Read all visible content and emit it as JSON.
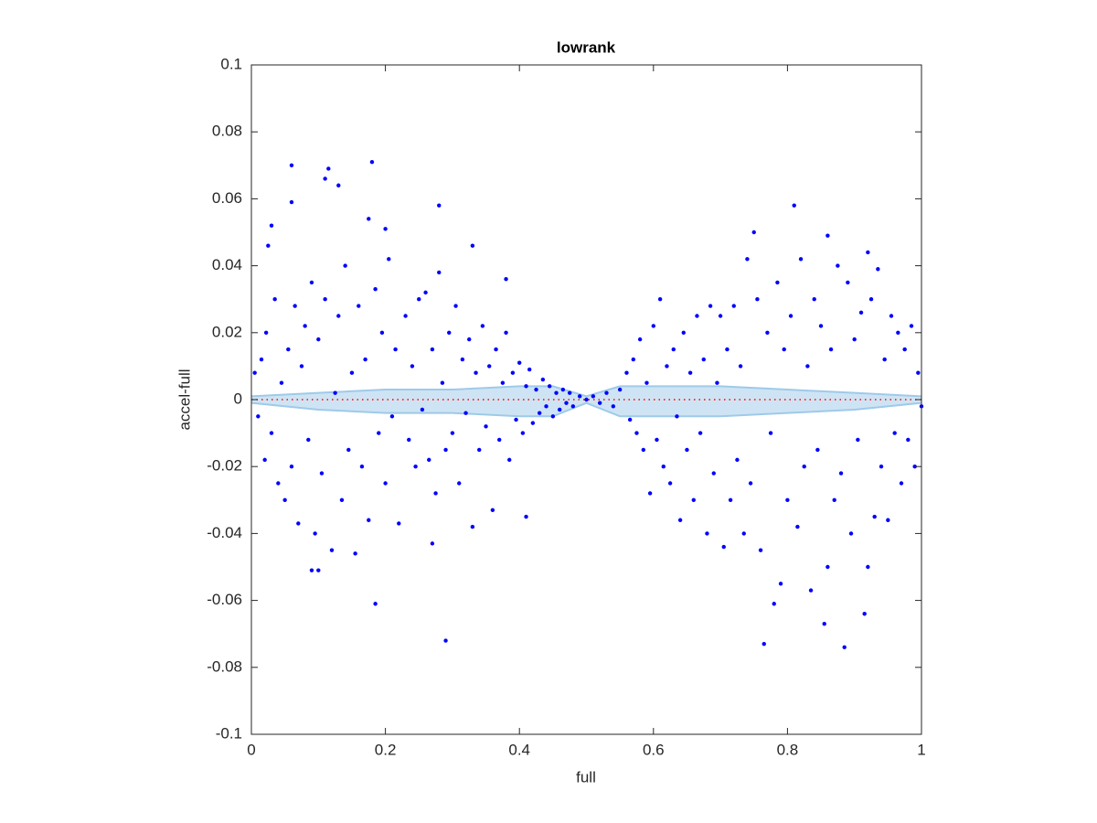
{
  "chart_data": {
    "type": "scatter",
    "title": "lowrank",
    "xlabel": "full",
    "ylabel": "accel-full",
    "xlim": [
      0,
      1
    ],
    "ylim": [
      -0.1,
      0.1
    ],
    "xticks": [
      0,
      0.2,
      0.4,
      0.6,
      0.8,
      1
    ],
    "yticks": [
      -0.1,
      -0.08,
      -0.06,
      -0.04,
      -0.02,
      0,
      0.02,
      0.04,
      0.06,
      0.08,
      0.1
    ],
    "band": {
      "color": "#9ecae9",
      "x": [
        0,
        0.1,
        0.2,
        0.3,
        0.4,
        0.45,
        0.5,
        0.55,
        0.6,
        0.7,
        0.8,
        0.9,
        1
      ],
      "upper": [
        0.001,
        0.002,
        0.003,
        0.003,
        0.004,
        0.004,
        0.001,
        0.004,
        0.004,
        0.004,
        0.003,
        0.002,
        0.001
      ],
      "lower": [
        -0.001,
        -0.003,
        -0.004,
        -0.004,
        -0.005,
        -0.005,
        -0.001,
        -0.005,
        -0.005,
        -0.005,
        -0.004,
        -0.003,
        -0.001
      ]
    },
    "reference_line": {
      "color": "#ff0000",
      "x": [
        0,
        1
      ],
      "values": [
        0,
        0
      ]
    },
    "series": [
      {
        "color": "#0000ff",
        "x": [
          0.06,
          0.11,
          0.115,
          0.18,
          0.13,
          0.06,
          0.03,
          0.28,
          0.29,
          0.185,
          0.09,
          0.1,
          0.765,
          0.885,
          0.855,
          0.81,
          0.75,
          0.86,
          0.92,
          0.78,
          0.915,
          0.41,
          0.33,
          0.38,
          0.27,
          0.025,
          0.2,
          0.175,
          0.005,
          0.01,
          0.015,
          0.02,
          0.022,
          0.03,
          0.035,
          0.04,
          0.045,
          0.05,
          0.055,
          0.06,
          0.065,
          0.07,
          0.075,
          0.08,
          0.085,
          0.09,
          0.095,
          0.1,
          0.105,
          0.11,
          0.12,
          0.125,
          0.13,
          0.135,
          0.14,
          0.145,
          0.15,
          0.155,
          0.16,
          0.165,
          0.17,
          0.175,
          0.185,
          0.19,
          0.195,
          0.2,
          0.205,
          0.21,
          0.215,
          0.22,
          0.23,
          0.235,
          0.24,
          0.245,
          0.25,
          0.255,
          0.26,
          0.265,
          0.27,
          0.275,
          0.28,
          0.285,
          0.29,
          0.295,
          0.3,
          0.305,
          0.31,
          0.315,
          0.32,
          0.325,
          0.33,
          0.335,
          0.34,
          0.345,
          0.35,
          0.355,
          0.36,
          0.365,
          0.37,
          0.375,
          0.38,
          0.385,
          0.39,
          0.395,
          0.4,
          0.405,
          0.41,
          0.415,
          0.42,
          0.425,
          0.43,
          0.435,
          0.44,
          0.445,
          0.45,
          0.455,
          0.46,
          0.465,
          0.47,
          0.475,
          0.48,
          0.49,
          0.5,
          0.51,
          0.52,
          0.53,
          0.54,
          0.55,
          0.56,
          0.565,
          0.57,
          0.575,
          0.58,
          0.585,
          0.59,
          0.595,
          0.6,
          0.605,
          0.61,
          0.615,
          0.62,
          0.625,
          0.63,
          0.635,
          0.64,
          0.645,
          0.65,
          0.655,
          0.66,
          0.665,
          0.67,
          0.675,
          0.68,
          0.685,
          0.69,
          0.695,
          0.7,
          0.705,
          0.71,
          0.715,
          0.72,
          0.725,
          0.73,
          0.735,
          0.74,
          0.745,
          0.755,
          0.76,
          0.77,
          0.775,
          0.785,
          0.79,
          0.795,
          0.8,
          0.805,
          0.815,
          0.82,
          0.825,
          0.83,
          0.835,
          0.84,
          0.845,
          0.85,
          0.86,
          0.865,
          0.87,
          0.875,
          0.88,
          0.89,
          0.895,
          0.9,
          0.905,
          0.91,
          0.92,
          0.925,
          0.93,
          0.935,
          0.94,
          0.945,
          0.95,
          0.955,
          0.96,
          0.965,
          0.97,
          0.975,
          0.98,
          0.985,
          0.99,
          0.995,
          1
        ],
        "values": [
          0.07,
          0.066,
          0.069,
          0.071,
          0.064,
          0.059,
          0.052,
          0.058,
          -0.072,
          -0.061,
          -0.051,
          -0.051,
          -0.073,
          -0.074,
          -0.067,
          0.058,
          0.05,
          0.049,
          0.044,
          -0.061,
          -0.064,
          -0.035,
          0.046,
          0.036,
          -0.043,
          0.046,
          0.051,
          0.054,
          0.008,
          -0.005,
          0.012,
          -0.018,
          0.02,
          -0.01,
          0.03,
          -0.025,
          0.005,
          -0.03,
          0.015,
          -0.02,
          0.028,
          -0.037,
          0.01,
          0.022,
          -0.012,
          0.035,
          -0.04,
          0.018,
          -0.022,
          0.03,
          -0.045,
          0.002,
          0.025,
          -0.03,
          0.04,
          -0.015,
          0.008,
          -0.046,
          0.028,
          -0.02,
          0.012,
          -0.036,
          0.033,
          -0.01,
          0.02,
          -0.025,
          0.042,
          -0.005,
          0.015,
          -0.037,
          0.025,
          -0.012,
          0.01,
          -0.02,
          0.03,
          -0.003,
          0.032,
          -0.018,
          0.015,
          -0.028,
          0.038,
          0.005,
          -0.015,
          0.02,
          -0.01,
          0.028,
          -0.025,
          0.012,
          -0.004,
          0.018,
          -0.038,
          0.008,
          -0.015,
          0.022,
          -0.008,
          0.01,
          -0.033,
          0.015,
          -0.012,
          0.005,
          0.02,
          -0.018,
          0.008,
          -0.006,
          0.011,
          -0.01,
          0.004,
          0.009,
          -0.007,
          0.003,
          -0.004,
          0.006,
          -0.002,
          0.004,
          -0.005,
          0.002,
          -0.003,
          0.003,
          -0.001,
          0.002,
          -0.002,
          0.001,
          0,
          0.001,
          -0.001,
          0.002,
          -0.002,
          0.003,
          0.008,
          -0.006,
          0.012,
          -0.01,
          0.018,
          -0.015,
          0.005,
          -0.028,
          0.022,
          -0.012,
          0.03,
          -0.02,
          0.01,
          -0.025,
          0.015,
          -0.005,
          -0.036,
          0.02,
          -0.015,
          0.008,
          -0.03,
          0.025,
          -0.01,
          0.012,
          -0.04,
          0.028,
          -0.022,
          0.005,
          0.025,
          -0.044,
          0.015,
          -0.03,
          0.028,
          -0.018,
          0.01,
          -0.04,
          0.042,
          -0.025,
          0.03,
          -0.045,
          0.02,
          -0.01,
          0.035,
          -0.055,
          0.015,
          -0.03,
          0.025,
          -0.038,
          0.042,
          -0.02,
          0.01,
          -0.057,
          0.03,
          -0.015,
          0.022,
          -0.05,
          0.015,
          -0.03,
          0.04,
          -0.022,
          0.035,
          -0.04,
          0.018,
          -0.012,
          0.026,
          -0.05,
          0.03,
          -0.035,
          0.039,
          -0.02,
          0.012,
          -0.036,
          0.025,
          -0.01,
          0.02,
          -0.025,
          0.015,
          -0.012,
          0.022,
          -0.02,
          0.008,
          -0.002
        ]
      }
    ]
  }
}
